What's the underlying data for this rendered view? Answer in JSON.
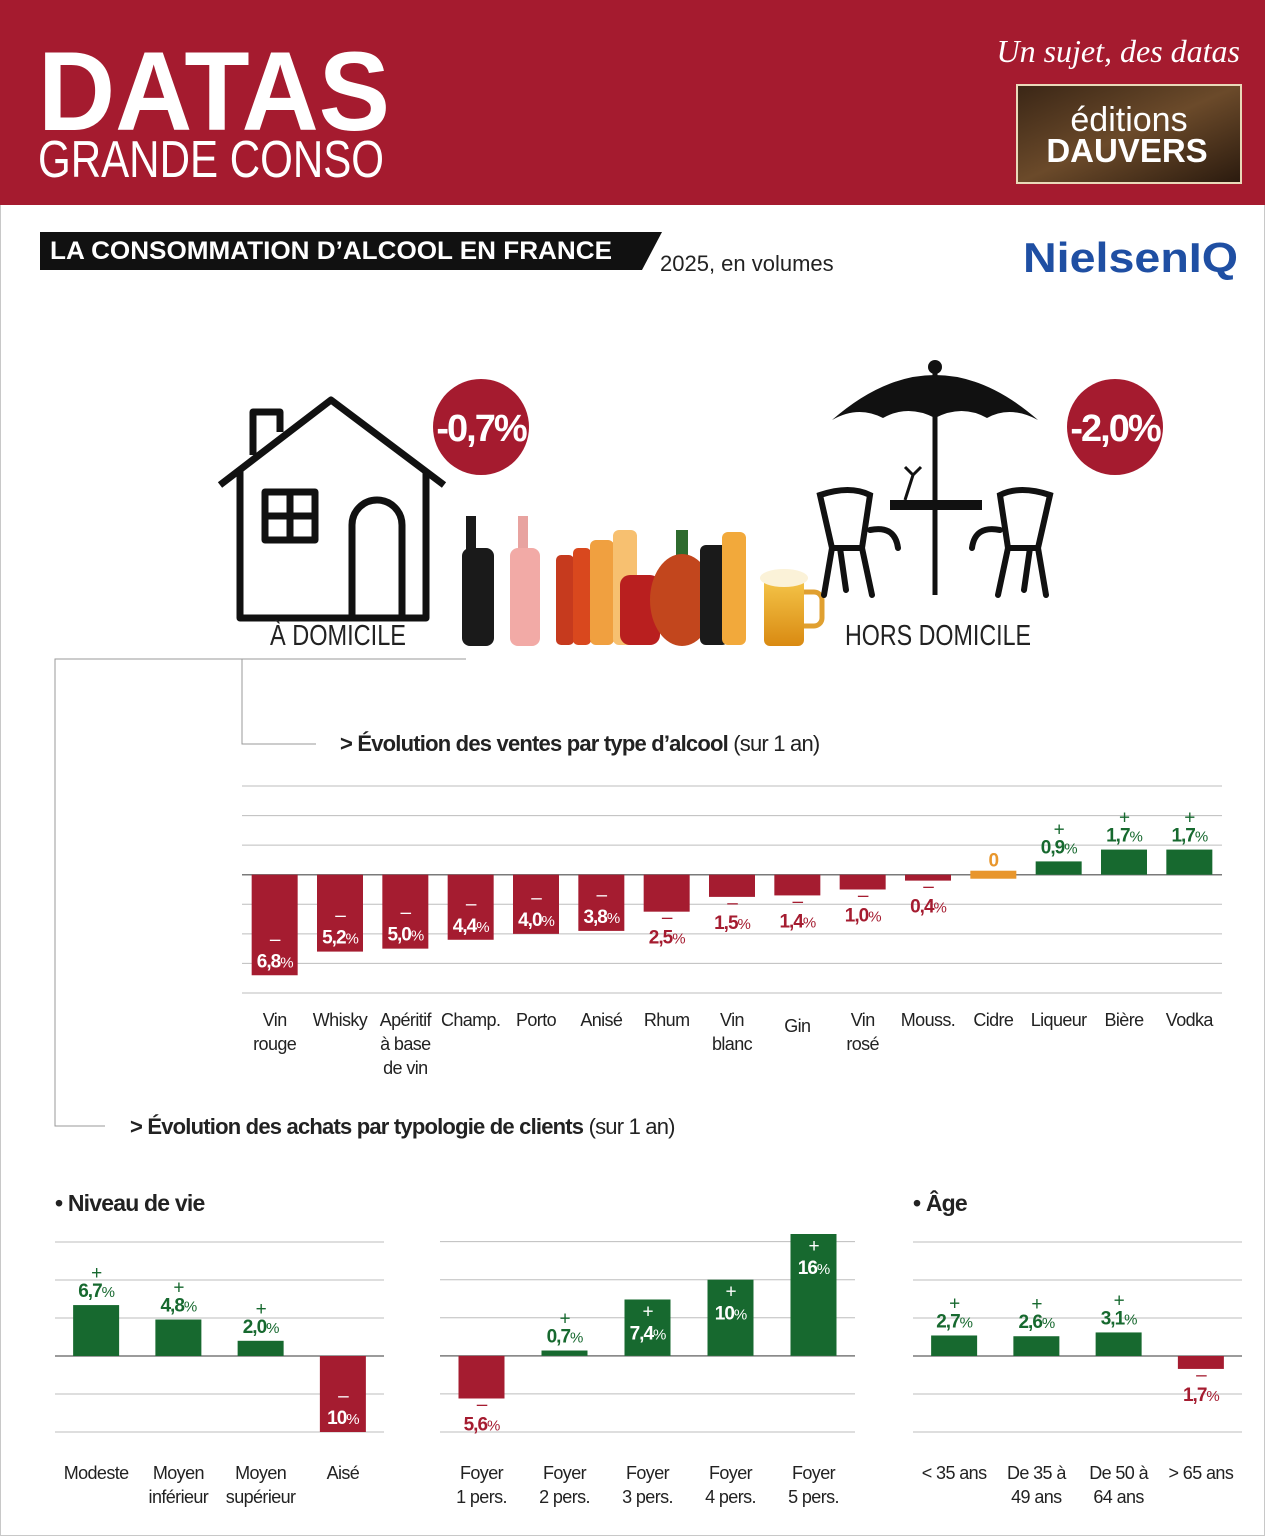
{
  "header": {
    "brand_big": "DATAS",
    "brand_small": "GRANDE CONSO",
    "tagline": "Un sujet, des datas",
    "publisher_top": "éditions",
    "publisher_bottom": "DAUVERS"
  },
  "title": "LA CONSOMMATION D’ALCOOL EN FRANCE",
  "subtitle": "2025, en volumes",
  "source": "NielsenIQ",
  "home": {
    "label": "À DOMICILE",
    "value": -0.7,
    "value_label": "-0,7%"
  },
  "away": {
    "label": "HORS DOMICILE",
    "value": -2.0,
    "value_label": "-2,0%"
  },
  "section2": {
    "title": "> Évolution des achats par typologie de clients",
    "note": "(sur 1 an)"
  },
  "chart_data": [
    {
      "type": "bar",
      "title": "> Évolution des ventes par type d’alcool",
      "subtitle": "(sur 1 an)",
      "categories": [
        "Vin\nrouge",
        "Whisky",
        "Apéritif\nà base\nde vin",
        "Champ.",
        "Porto",
        "Anisé",
        "Rhum",
        "Vin\nblanc",
        "Gin",
        "Vin\nrosé",
        "Mouss.",
        "Cidre",
        "Liqueur",
        "Bière",
        "Vodka"
      ],
      "values": [
        -6.8,
        -5.2,
        -5.0,
        -4.4,
        -4.0,
        -3.8,
        -2.5,
        -1.5,
        -1.4,
        -1.0,
        -0.4,
        0,
        0.9,
        1.7,
        1.7
      ],
      "value_labels": [
        "–6,8%",
        "–5,2%",
        "–5,0%",
        "–4,4%",
        "–4,0%",
        "–3,8%",
        "–2,5%",
        "–1,5%",
        "–1,4%",
        "–1,0%",
        "–0,4%",
        "0",
        "+0,9%",
        "+1,7%",
        "+1,7%"
      ],
      "ylim": [
        -8,
        6
      ],
      "yticks": [
        -8,
        -6,
        -4,
        -2,
        0,
        2,
        4,
        6
      ],
      "grid": true,
      "negative_color": "#a51c30",
      "positive_color": "#17692f",
      "zero_color": "#e8962c"
    },
    {
      "type": "bar",
      "title": "• Niveau de vie",
      "categories": [
        "Modeste",
        "Moyen\ninférieur",
        "Moyen\nsupérieur",
        "Aisé"
      ],
      "values": [
        6.7,
        4.8,
        2.0,
        -10
      ],
      "value_labels": [
        "+6,7%",
        "+4,8%",
        "+2,0%",
        "–10%"
      ],
      "ylim": [
        -10,
        15
      ],
      "yticks": [
        -10,
        -5,
        0,
        5,
        10,
        15
      ],
      "grid": true,
      "negative_color": "#a51c30",
      "positive_color": "#17692f",
      "zero_color": "#e8962c"
    },
    {
      "type": "bar",
      "categories": [
        "Foyer\n1 pers.",
        "Foyer\n2 pers.",
        "Foyer\n3 pers.",
        "Foyer\n4 pers.",
        "Foyer\n5 pers."
      ],
      "values": [
        -5.6,
        0.7,
        7.4,
        10,
        16
      ],
      "value_labels": [
        "–5,6%",
        "+0,7%",
        "+7,4%",
        "+10%",
        "+16%"
      ],
      "ylim": [
        -10,
        16
      ],
      "yticks": [
        -10,
        -5,
        0,
        5,
        10,
        15
      ],
      "grid": true,
      "negative_color": "#a51c30",
      "positive_color": "#17692f",
      "zero_color": "#e8962c"
    },
    {
      "type": "bar",
      "title": "• Âge",
      "categories": [
        "< 35 ans",
        "De 35 à\n49 ans",
        "De 50 à\n64 ans",
        "> 65 ans"
      ],
      "values": [
        2.7,
        2.6,
        3.1,
        -1.7
      ],
      "value_labels": [
        "+2,7%",
        "+2,6%",
        "+3,1%",
        "–1,7%"
      ],
      "ylim": [
        -10,
        15
      ],
      "yticks": [
        -10,
        -5,
        0,
        5,
        10,
        15
      ],
      "grid": true,
      "negative_color": "#a51c30",
      "positive_color": "#17692f",
      "zero_color": "#e8962c"
    }
  ]
}
